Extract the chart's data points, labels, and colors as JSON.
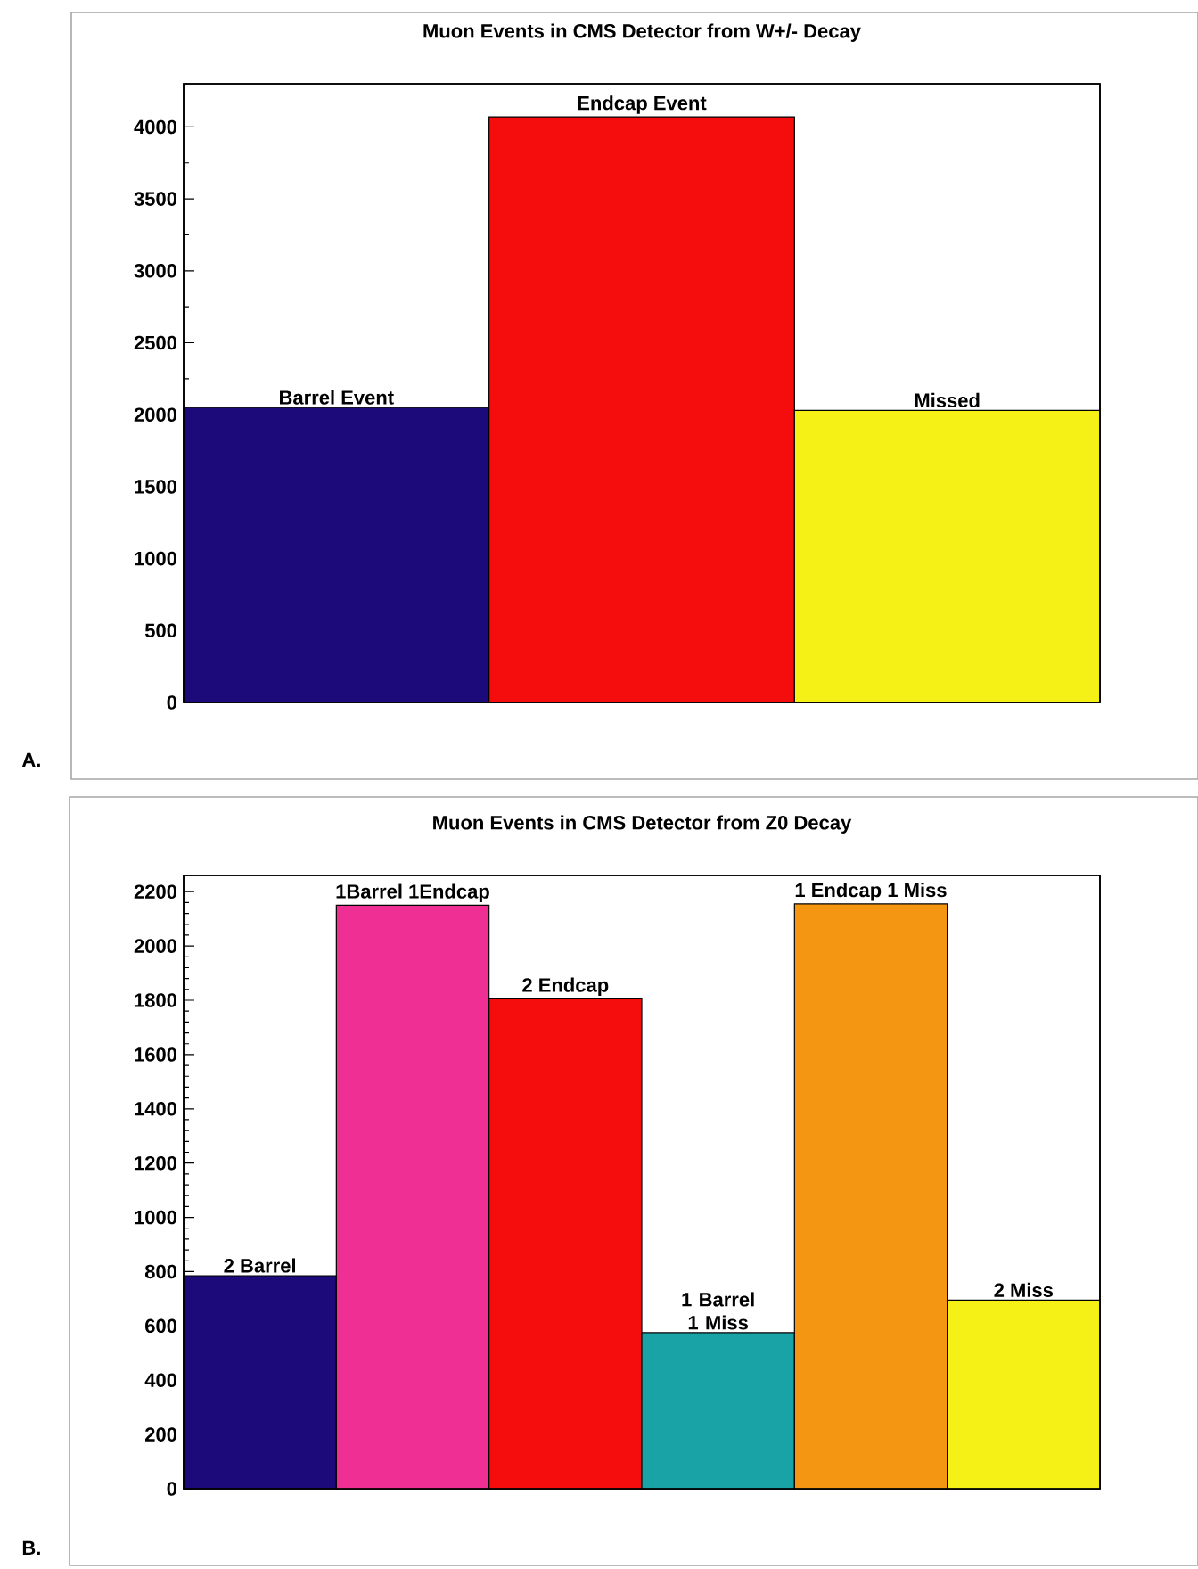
{
  "chart_data": [
    {
      "type": "bar",
      "title": "Muon Events in CMS Detector from W+/- Decay",
      "categories": [
        "Barrel Event",
        "Endcap Event",
        "Missed"
      ],
      "values": [
        2050,
        4070,
        2030
      ],
      "colors": [
        "#1c0a7a",
        "#f50d0d",
        "#f5f015"
      ],
      "ylim": [
        0,
        4300
      ],
      "yticks": [
        0,
        500,
        1000,
        1500,
        2000,
        2500,
        3000,
        3500,
        4000
      ],
      "tick_labels": "y",
      "annotations": [
        "A."
      ]
    },
    {
      "type": "bar",
      "title": "Muon Events in CMS Detector from Z0 Decay",
      "categories": [
        "2 Barrel",
        "1Barrel 1Endcap",
        "2 Endcap",
        "1 Barrel 1 Miss",
        "1 Endcap 1 Miss",
        "2 Miss"
      ],
      "values": [
        785,
        2150,
        1805,
        575,
        2155,
        695
      ],
      "colors": [
        "#1c0a7a",
        "#f02f95",
        "#f50d0d",
        "#1aa3a6",
        "#f59612",
        "#f5f015"
      ],
      "ylim": [
        0,
        2260
      ],
      "yticks": [
        0,
        200,
        400,
        600,
        800,
        1000,
        1200,
        1400,
        1600,
        1800,
        2000,
        2200
      ],
      "tick_labels": "y",
      "annotations": [
        "B."
      ]
    }
  ]
}
